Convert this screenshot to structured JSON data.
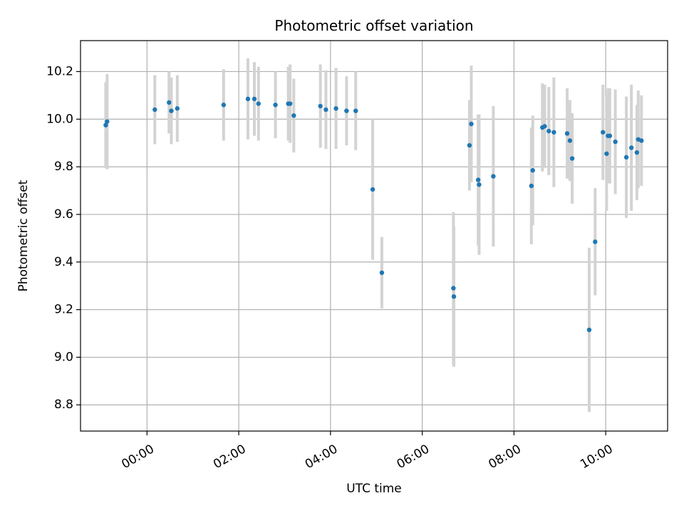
{
  "chart_data": {
    "type": "scatter",
    "title": "Photometric offset variation",
    "xlabel": "UTC time",
    "ylabel": "Photometric offset",
    "grid": true,
    "xlim": [
      -1.45,
      11.35
    ],
    "ylim": [
      8.69,
      10.33
    ],
    "x_ticks": [
      {
        "value": 0,
        "label": "00:00"
      },
      {
        "value": 2,
        "label": "02:00"
      },
      {
        "value": 4,
        "label": "04:00"
      },
      {
        "value": 6,
        "label": "06:00"
      },
      {
        "value": 8,
        "label": "08:00"
      },
      {
        "value": 10,
        "label": "10:00"
      }
    ],
    "y_ticks": [
      {
        "value": 8.8,
        "label": "8.8"
      },
      {
        "value": 9.0,
        "label": "9.0"
      },
      {
        "value": 9.2,
        "label": "9.2"
      },
      {
        "value": 9.4,
        "label": "9.4"
      },
      {
        "value": 9.6,
        "label": "9.6"
      },
      {
        "value": 9.8,
        "label": "9.8"
      },
      {
        "value": 10.0,
        "label": "10.0"
      },
      {
        "value": 10.2,
        "label": "10.2"
      }
    ],
    "colors": {
      "point": "#1f77b4",
      "errorbar": "#d3d3d3",
      "grid": "#b0b0b0"
    },
    "series": [
      {
        "name": "offset",
        "x": [
          -0.9,
          -0.87,
          0.17,
          0.48,
          0.53,
          0.66,
          1.67,
          2.2,
          2.34,
          2.43,
          2.8,
          3.08,
          3.12,
          3.2,
          3.78,
          3.9,
          4.12,
          4.35,
          4.55,
          4.92,
          5.12,
          6.68,
          6.69,
          7.03,
          7.07,
          7.22,
          7.24,
          7.55,
          8.38,
          8.41,
          8.62,
          8.67,
          8.76,
          8.87,
          9.16,
          9.22,
          9.27,
          9.64,
          9.77,
          9.94,
          10.02,
          10.05,
          10.09,
          10.21,
          10.45,
          10.56,
          10.68,
          10.71,
          10.78
        ],
        "y": [
          9.975,
          9.99,
          10.04,
          10.07,
          10.035,
          10.045,
          10.06,
          10.085,
          10.085,
          10.065,
          10.06,
          10.065,
          10.065,
          10.015,
          10.055,
          10.04,
          10.045,
          10.035,
          10.035,
          9.705,
          9.355,
          9.29,
          9.255,
          9.89,
          9.98,
          9.745,
          9.725,
          9.76,
          9.72,
          9.785,
          9.965,
          9.97,
          9.95,
          9.945,
          9.94,
          9.91,
          9.835,
          9.115,
          9.485,
          9.945,
          9.855,
          9.93,
          9.93,
          9.905,
          9.84,
          9.88,
          9.86,
          9.915,
          9.91
        ],
        "err": [
          0.18,
          0.2,
          0.145,
          0.13,
          0.14,
          0.14,
          0.15,
          0.17,
          0.155,
          0.155,
          0.14,
          0.155,
          0.165,
          0.155,
          0.175,
          0.165,
          0.17,
          0.145,
          0.165,
          0.295,
          0.15,
          0.32,
          0.295,
          0.19,
          0.245,
          0.275,
          0.295,
          0.295,
          0.245,
          0.23,
          0.185,
          0.175,
          0.185,
          0.23,
          0.19,
          0.17,
          0.19,
          0.345,
          0.225,
          0.2,
          0.24,
          0.2,
          0.2,
          0.22,
          0.255,
          0.265,
          0.2,
          0.205,
          0.19
        ]
      }
    ]
  }
}
